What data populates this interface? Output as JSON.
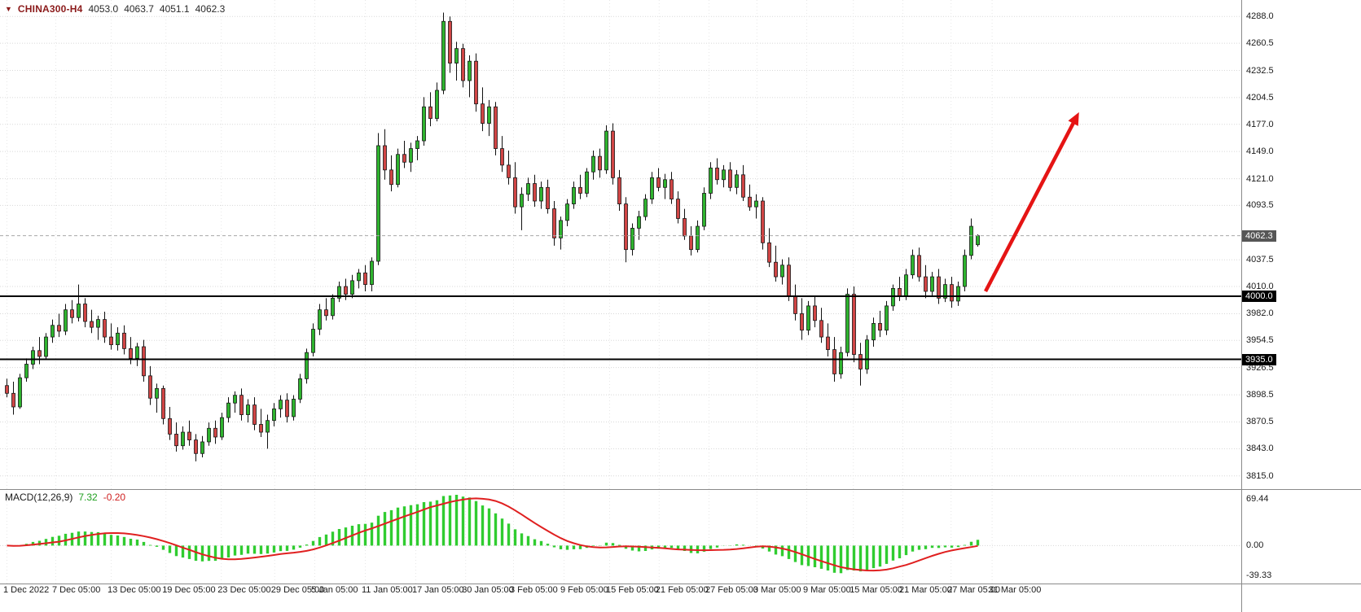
{
  "header": {
    "collapse_icon": "▼",
    "symbol": "CHINA300-H4",
    "open": "4053.0",
    "high": "4063.7",
    "low": "4051.1",
    "close": "4062.3"
  },
  "chart_data": {
    "type": "candlestick",
    "symbol": "CHINA300",
    "timeframe": "H4",
    "title": "CHINA300-H4",
    "price_range_visible": [
      3802,
      4305
    ],
    "up_color": "#2eb32e",
    "down_color": "#d04545",
    "wick_color": "#111111",
    "price_axis_labels": [
      "4288.0",
      "4260.5",
      "4232.5",
      "4204.5",
      "4177.0",
      "4149.0",
      "4121.0",
      "4093.5",
      "4037.5",
      "4010.0",
      "3982.0",
      "3954.5",
      "3926.5",
      "3898.5",
      "3870.5",
      "3843.0",
      "3815.0"
    ],
    "price_tags": [
      {
        "label": "4062.3",
        "price": 4062.3,
        "bg": "#565656",
        "role": "current-price"
      },
      {
        "label": "4000.0",
        "price": 4000.0,
        "bg": "#000000",
        "role": "support-level"
      },
      {
        "label": "3935.0",
        "price": 3935.0,
        "bg": "#000000",
        "role": "support-level"
      }
    ],
    "horizontal_lines": [
      {
        "price": 4000.0,
        "color": "#000000"
      },
      {
        "price": 3935.0,
        "color": "#000000"
      }
    ],
    "arrow_annotation": {
      "color": "#e51414",
      "from_bar": 150.5,
      "from_price": 4005,
      "to_bar": 164.5,
      "to_price": 4185
    },
    "time_labels": [
      {
        "text": "1 Dec 2022",
        "bar": 0
      },
      {
        "text": "7 Dec 05:00",
        "bar": 7.5
      },
      {
        "text": "13 Dec 05:00",
        "bar": 16
      },
      {
        "text": "19 Dec 05:00",
        "bar": 24.4
      },
      {
        "text": "23 Dec 05:00",
        "bar": 32.9
      },
      {
        "text": "29 Dec 05:00",
        "bar": 41.1
      },
      {
        "text": "5 Jan 05:00",
        "bar": 47.25
      },
      {
        "text": "11 Jan 05:00",
        "bar": 55
      },
      {
        "text": "17 Jan 05:00",
        "bar": 62.75
      },
      {
        "text": "30 Jan 05:00",
        "bar": 70.4
      },
      {
        "text": "3 Feb 05:00",
        "bar": 77.75
      },
      {
        "text": "9 Feb 05:00",
        "bar": 85.5
      },
      {
        "text": "15 Feb 05:00",
        "bar": 92.5
      },
      {
        "text": "21 Feb 05:00",
        "bar": 100.1
      },
      {
        "text": "27 Feb 05:00",
        "bar": 107.75
      },
      {
        "text": "3 Mar 05:00",
        "bar": 115.1
      },
      {
        "text": "9 Mar 05:00",
        "bar": 122.75
      },
      {
        "text": "15 Mar 05:00",
        "bar": 129.9
      },
      {
        "text": "21 Mar 05:00",
        "bar": 137.5
      },
      {
        "text": "27 Mar 05:00",
        "bar": 144.9
      },
      {
        "text": "31 Mar 05:00",
        "bar": 151.2
      }
    ],
    "candles": [
      [
        3908,
        3915,
        3896,
        3900
      ],
      [
        3900,
        3912,
        3878,
        3886
      ],
      [
        3886,
        3920,
        3884,
        3916
      ],
      [
        3916,
        3936,
        3912,
        3930
      ],
      [
        3930,
        3948,
        3925,
        3944
      ],
      [
        3944,
        3958,
        3930,
        3938
      ],
      [
        3938,
        3962,
        3935,
        3958
      ],
      [
        3958,
        3976,
        3952,
        3970
      ],
      [
        3970,
        3982,
        3958,
        3964
      ],
      [
        3964,
        3992,
        3960,
        3986
      ],
      [
        3986,
        3996,
        3972,
        3978
      ],
      [
        3978,
        4012,
        3974,
        3992
      ],
      [
        3992,
        3998,
        3968,
        3974
      ],
      [
        3974,
        3986,
        3962,
        3968
      ],
      [
        3968,
        3980,
        3955,
        3976
      ],
      [
        3976,
        3984,
        3952,
        3958
      ],
      [
        3958,
        3972,
        3945,
        3950
      ],
      [
        3950,
        3968,
        3944,
        3962
      ],
      [
        3962,
        3970,
        3940,
        3946
      ],
      [
        3946,
        3958,
        3930,
        3936
      ],
      [
        3936,
        3952,
        3928,
        3948
      ],
      [
        3948,
        3955,
        3912,
        3918
      ],
      [
        3918,
        3928,
        3888,
        3895
      ],
      [
        3895,
        3910,
        3880,
        3905
      ],
      [
        3905,
        3908,
        3868,
        3874
      ],
      [
        3874,
        3886,
        3852,
        3858
      ],
      [
        3858,
        3870,
        3840,
        3846
      ],
      [
        3846,
        3866,
        3842,
        3860
      ],
      [
        3860,
        3872,
        3846,
        3852
      ],
      [
        3852,
        3858,
        3830,
        3838
      ],
      [
        3838,
        3856,
        3834,
        3850
      ],
      [
        3850,
        3870,
        3846,
        3864
      ],
      [
        3864,
        3872,
        3848,
        3855
      ],
      [
        3855,
        3880,
        3852,
        3875
      ],
      [
        3875,
        3896,
        3870,
        3890
      ],
      [
        3890,
        3902,
        3880,
        3898
      ],
      [
        3898,
        3905,
        3872,
        3878
      ],
      [
        3878,
        3894,
        3870,
        3888
      ],
      [
        3888,
        3896,
        3862,
        3868
      ],
      [
        3868,
        3884,
        3855,
        3860
      ],
      [
        3860,
        3878,
        3843,
        3872
      ],
      [
        3872,
        3890,
        3866,
        3884
      ],
      [
        3884,
        3898,
        3875,
        3893
      ],
      [
        3893,
        3900,
        3870,
        3876
      ],
      [
        3876,
        3898,
        3872,
        3894
      ],
      [
        3894,
        3920,
        3890,
        3915
      ],
      [
        3915,
        3946,
        3910,
        3942
      ],
      [
        3942,
        3972,
        3938,
        3966
      ],
      [
        3966,
        3992,
        3960,
        3986
      ],
      [
        3986,
        3998,
        3975,
        3980
      ],
      [
        3980,
        4002,
        3976,
        3998
      ],
      [
        3998,
        4015,
        3994,
        4010
      ],
      [
        4010,
        4018,
        3996,
        4002
      ],
      [
        4002,
        4022,
        3998,
        4016
      ],
      [
        4016,
        4028,
        4008,
        4024
      ],
      [
        4024,
        4032,
        4005,
        4012
      ],
      [
        4012,
        4040,
        4005,
        4036
      ],
      [
        4036,
        4168,
        4032,
        4155
      ],
      [
        4155,
        4172,
        4120,
        4130
      ],
      [
        4130,
        4145,
        4108,
        4115
      ],
      [
        4115,
        4152,
        4112,
        4146
      ],
      [
        4146,
        4160,
        4132,
        4138
      ],
      [
        4138,
        4158,
        4128,
        4152
      ],
      [
        4152,
        4165,
        4140,
        4160
      ],
      [
        4160,
        4205,
        4155,
        4195
      ],
      [
        4195,
        4210,
        4175,
        4183
      ],
      [
        4183,
        4220,
        4180,
        4212
      ],
      [
        4212,
        4292,
        4208,
        4283
      ],
      [
        4283,
        4288,
        4230,
        4240
      ],
      [
        4240,
        4262,
        4222,
        4255
      ],
      [
        4255,
        4260,
        4215,
        4222
      ],
      [
        4222,
        4248,
        4205,
        4242
      ],
      [
        4242,
        4250,
        4190,
        4198
      ],
      [
        4198,
        4215,
        4170,
        4178
      ],
      [
        4178,
        4202,
        4165,
        4195
      ],
      [
        4195,
        4200,
        4145,
        4152
      ],
      [
        4152,
        4165,
        4128,
        4135
      ],
      [
        4135,
        4150,
        4115,
        4122
      ],
      [
        4122,
        4138,
        4085,
        4092
      ],
      [
        4092,
        4112,
        4068,
        4105
      ],
      [
        4105,
        4122,
        4098,
        4116
      ],
      [
        4116,
        4125,
        4092,
        4098
      ],
      [
        4098,
        4118,
        4090,
        4112
      ],
      [
        4112,
        4120,
        4085,
        4090
      ],
      [
        4090,
        4098,
        4052,
        4060
      ],
      [
        4060,
        4082,
        4048,
        4078
      ],
      [
        4078,
        4100,
        4072,
        4095
      ],
      [
        4095,
        4118,
        4090,
        4112
      ],
      [
        4112,
        4125,
        4100,
        4106
      ],
      [
        4106,
        4132,
        4102,
        4128
      ],
      [
        4128,
        4150,
        4120,
        4144
      ],
      [
        4144,
        4152,
        4122,
        4130
      ],
      [
        4130,
        4176,
        4126,
        4170
      ],
      [
        4170,
        4178,
        4115,
        4122
      ],
      [
        4122,
        4130,
        4088,
        4095
      ],
      [
        4095,
        4102,
        4035,
        4048
      ],
      [
        4048,
        4075,
        4042,
        4070
      ],
      [
        4070,
        4088,
        4058,
        4082
      ],
      [
        4082,
        4105,
        4078,
        4100
      ],
      [
        4100,
        4128,
        4095,
        4122
      ],
      [
        4122,
        4132,
        4108,
        4112
      ],
      [
        4112,
        4126,
        4100,
        4120
      ],
      [
        4120,
        4128,
        4095,
        4100
      ],
      [
        4100,
        4108,
        4075,
        4080
      ],
      [
        4080,
        4090,
        4058,
        4062
      ],
      [
        4062,
        4072,
        4042,
        4048
      ],
      [
        4048,
        4078,
        4045,
        4072
      ],
      [
        4072,
        4112,
        4068,
        4106
      ],
      [
        4106,
        4138,
        4100,
        4132
      ],
      [
        4132,
        4142,
        4115,
        4120
      ],
      [
        4120,
        4135,
        4112,
        4130
      ],
      [
        4130,
        4138,
        4108,
        4112
      ],
      [
        4112,
        4130,
        4105,
        4125
      ],
      [
        4125,
        4135,
        4098,
        4102
      ],
      [
        4102,
        4115,
        4088,
        4092
      ],
      [
        4092,
        4105,
        4080,
        4098
      ],
      [
        4098,
        4102,
        4048,
        4055
      ],
      [
        4055,
        4070,
        4030,
        4035
      ],
      [
        4035,
        4052,
        4015,
        4020
      ],
      [
        4020,
        4038,
        4012,
        4032
      ],
      [
        4032,
        4040,
        3995,
        4000
      ],
      [
        4000,
        4012,
        3975,
        3982
      ],
      [
        3982,
        3998,
        3955,
        3965
      ],
      [
        3965,
        3995,
        3960,
        3990
      ],
      [
        3990,
        4000,
        3968,
        3975
      ],
      [
        3975,
        3988,
        3952,
        3958
      ],
      [
        3958,
        3972,
        3938,
        3945
      ],
      [
        3945,
        3958,
        3912,
        3920
      ],
      [
        3920,
        3948,
        3915,
        3942
      ],
      [
        3942,
        4008,
        3938,
        4002
      ],
      [
        4002,
        4010,
        3932,
        3940
      ],
      [
        3940,
        3952,
        3908,
        3925
      ],
      [
        3925,
        3960,
        3920,
        3955
      ],
      [
        3955,
        3978,
        3948,
        3972
      ],
      [
        3972,
        3985,
        3958,
        3965
      ],
      [
        3965,
        3995,
        3960,
        3990
      ],
      [
        3990,
        4012,
        3985,
        4008
      ],
      [
        4008,
        4020,
        3995,
        4000
      ],
      [
        4000,
        4028,
        3996,
        4022
      ],
      [
        4022,
        4048,
        4018,
        4042
      ],
      [
        4042,
        4050,
        4015,
        4020
      ],
      [
        4020,
        4032,
        3998,
        4005
      ],
      [
        4005,
        4025,
        4000,
        4020
      ],
      [
        4020,
        4028,
        3992,
        3998
      ],
      [
        3998,
        4018,
        3994,
        4012
      ],
      [
        4012,
        4020,
        3988,
        3995
      ],
      [
        3995,
        4015,
        3990,
        4010
      ],
      [
        4010,
        4048,
        4005,
        4042
      ],
      [
        4042,
        4080,
        4038,
        4072
      ],
      [
        4053.0,
        4063.7,
        4051.1,
        4062.3
      ]
    ],
    "macd": {
      "label": "MACD(12,26,9)",
      "params": [
        12,
        26,
        9
      ],
      "main_value": "7.32",
      "signal_value": "-0.20",
      "axis_labels": [
        "69.44",
        "0.00",
        "-39.33"
      ],
      "histogram_color": "#30cc30",
      "signal_color": "#e02020"
    }
  }
}
